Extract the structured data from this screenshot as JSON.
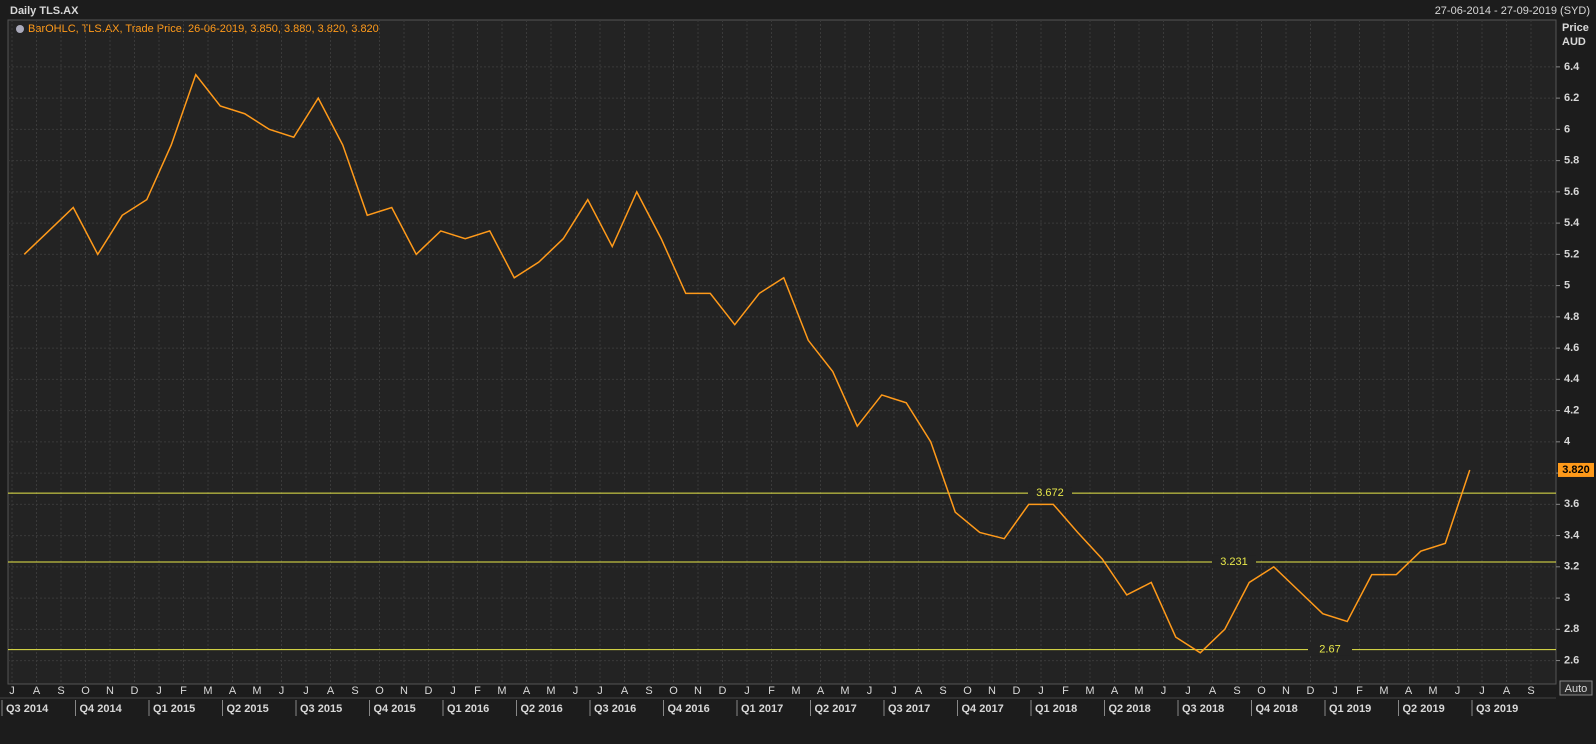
{
  "chart_data": {
    "type": "line",
    "title": "Daily TLS.AX",
    "date_range": "27-06-2014 - 27-09-2019 (SYD)",
    "legend_text": "BarOHLC, TLS.AX, Trade Price, 26-06-2019, 3.850, 3.880, 3.820, 3.820",
    "y_axis_label": "Price",
    "y_axis_unit": "AUD",
    "scale_button": "Auto",
    "x": [
      "2014-07",
      "2014-08",
      "2014-09",
      "2014-10",
      "2014-11",
      "2014-12",
      "2015-01",
      "2015-02",
      "2015-03",
      "2015-04",
      "2015-05",
      "2015-06",
      "2015-07",
      "2015-08",
      "2015-09",
      "2015-10",
      "2015-11",
      "2015-12",
      "2016-01",
      "2016-02",
      "2016-03",
      "2016-04",
      "2016-05",
      "2016-06",
      "2016-07",
      "2016-08",
      "2016-09",
      "2016-10",
      "2016-11",
      "2016-12",
      "2017-01",
      "2017-02",
      "2017-03",
      "2017-04",
      "2017-05",
      "2017-06",
      "2017-07",
      "2017-08",
      "2017-09",
      "2017-10",
      "2017-11",
      "2017-12",
      "2018-01",
      "2018-02",
      "2018-03",
      "2018-04",
      "2018-05",
      "2018-06",
      "2018-07",
      "2018-08",
      "2018-09",
      "2018-10",
      "2018-11",
      "2018-12",
      "2019-01",
      "2019-02",
      "2019-03",
      "2019-04",
      "2019-05",
      "2019-06"
    ],
    "series": [
      {
        "color": "#ff9a1a",
        "values": [
          5.2,
          5.35,
          5.5,
          5.2,
          5.45,
          5.55,
          5.9,
          6.35,
          6.15,
          6.1,
          6.0,
          5.95,
          6.2,
          5.9,
          5.45,
          5.5,
          5.2,
          5.35,
          5.3,
          5.35,
          5.05,
          5.15,
          5.3,
          5.55,
          5.25,
          5.6,
          5.3,
          4.95,
          4.95,
          4.75,
          4.95,
          5.05,
          4.65,
          4.45,
          4.1,
          4.3,
          4.25,
          4.0,
          3.55,
          3.42,
          3.38,
          3.6,
          3.6,
          3.42,
          3.25,
          3.02,
          3.1,
          2.75,
          2.65,
          2.8,
          3.1,
          3.2,
          3.05,
          2.9,
          2.85,
          3.15,
          3.15,
          3.3,
          3.35,
          3.82
        ]
      }
    ],
    "last_price": {
      "value": 3.82,
      "label": "3.820"
    },
    "levels": [
      3.672,
      3.231,
      2.67
    ],
    "level_color": "#e8e84a",
    "ylim": [
      2.45,
      6.7
    ],
    "yticks": [
      2.6,
      2.8,
      3,
      3.2,
      3.4,
      3.6,
      3.8,
      4,
      4.2,
      4.4,
      4.6,
      4.8,
      5,
      5.2,
      5.4,
      5.6,
      5.8,
      6,
      6.2,
      6.4
    ],
    "grid": true,
    "month_labels": [
      "J",
      "A",
      "S",
      "O",
      "N",
      "D",
      "J",
      "F",
      "M",
      "A",
      "M",
      "J",
      "J",
      "A",
      "S",
      "O",
      "N",
      "D",
      "J",
      "F",
      "M",
      "A",
      "M",
      "J",
      "J",
      "A",
      "S",
      "O",
      "N",
      "D",
      "J",
      "F",
      "M",
      "A",
      "M",
      "J",
      "J",
      "A",
      "S",
      "O",
      "N",
      "D",
      "J",
      "F",
      "M",
      "A",
      "M",
      "J",
      "J",
      "A",
      "S",
      "O",
      "N",
      "D",
      "J",
      "F",
      "M",
      "A",
      "M",
      "J",
      "J",
      "A",
      "S"
    ],
    "quarter_labels": [
      "Q3 2014",
      "Q4 2014",
      "Q1 2015",
      "Q2 2015",
      "Q3 2015",
      "Q4 2015",
      "Q1 2016",
      "Q2 2016",
      "Q3 2016",
      "Q4 2016",
      "Q1 2017",
      "Q2 2017",
      "Q3 2017",
      "Q4 2017",
      "Q1 2018",
      "Q2 2018",
      "Q3 2018",
      "Q4 2018",
      "Q1 2019",
      "Q2 2019",
      "Q3 2019"
    ]
  }
}
